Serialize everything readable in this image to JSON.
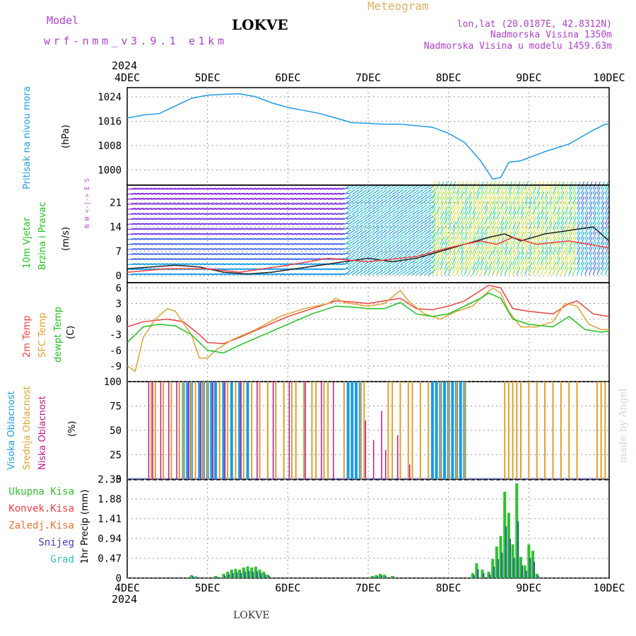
{
  "header": {
    "model_label": "Model",
    "model_name": "wrf-nmm_v3.9.1  e1km",
    "station": "LOKVE",
    "meteogram_label": "Meteogram",
    "lonlat": "lon,lat (20.0187E, 42.8312N)",
    "elevation": "Nadmorska Visina 1350m",
    "model_elevation": "Nadmorska Visina u modelu 1459.63m",
    "year_top": "2024",
    "year_bottom": "2024",
    "footer_station": "LOKVE",
    "watermark": "made by Angel"
  },
  "colors": {
    "pressure": "#1e9be6",
    "temp2m": "#f04040",
    "sfctemp": "#e0a030",
    "dewpt": "#20c020",
    "high_cloud": "#1e9be6",
    "mid_cloud": "#e0a030",
    "low_cloud": "#c01890",
    "precip_total": "#30c030",
    "precip_conv": "#f04040",
    "precip_snow": "#4040c0",
    "precip_grad": "#30c0c0",
    "purple_text": "#b040d0",
    "orange_text": "#e0b060",
    "wind_compass": "#c040d0"
  },
  "chart_data": {
    "x_ticks": [
      "4DEC",
      "5DEC",
      "6DEC",
      "7DEC",
      "8DEC",
      "9DEC",
      "10DEC"
    ],
    "x_range_days": [
      0,
      6
    ],
    "pressure": {
      "ylabel_left": "Pritisak na nivou mora",
      "unit": "(hPa)",
      "yticks": [
        "1024",
        "1016",
        "1008",
        "1000"
      ],
      "ylim": [
        995,
        1027
      ],
      "points": [
        [
          0,
          1017
        ],
        [
          0.2,
          1018
        ],
        [
          0.4,
          1018.5
        ],
        [
          0.6,
          1021
        ],
        [
          0.8,
          1023.5
        ],
        [
          1.0,
          1024.5
        ],
        [
          1.2,
          1024.8
        ],
        [
          1.4,
          1025
        ],
        [
          1.6,
          1024
        ],
        [
          1.8,
          1022
        ],
        [
          2.0,
          1020.5
        ],
        [
          2.2,
          1019.5
        ],
        [
          2.4,
          1018.5
        ],
        [
          2.6,
          1017
        ],
        [
          2.8,
          1015.5
        ],
        [
          3.0,
          1015.3
        ],
        [
          3.2,
          1015
        ],
        [
          3.4,
          1015
        ],
        [
          3.6,
          1014.5
        ],
        [
          3.8,
          1014
        ],
        [
          4.0,
          1012
        ],
        [
          4.2,
          1009
        ],
        [
          4.4,
          1003
        ],
        [
          4.55,
          997
        ],
        [
          4.65,
          997.5
        ],
        [
          4.75,
          1002.5
        ],
        [
          4.9,
          1003
        ],
        [
          5.2,
          1006
        ],
        [
          5.5,
          1008.5
        ],
        [
          5.8,
          1013
        ],
        [
          5.95,
          1015
        ],
        [
          6.0,
          1015
        ]
      ]
    },
    "wind": {
      "ylabel_left": "10m Vjetar",
      "ylabel_left2": "Brzina i Pravac",
      "unit": "(m/s)",
      "compass": "N  W <-|-> E  S",
      "yticks": [
        "21",
        "14",
        "7",
        "0"
      ],
      "ylim": [
        -2,
        26
      ],
      "speed_points": [
        [
          0,
          2
        ],
        [
          0.3,
          2.5
        ],
        [
          0.6,
          3
        ],
        [
          0.9,
          2.5
        ],
        [
          1.2,
          1
        ],
        [
          1.5,
          0.5
        ],
        [
          1.8,
          1
        ],
        [
          2.1,
          2
        ],
        [
          2.4,
          3
        ],
        [
          2.7,
          4
        ],
        [
          3.0,
          5
        ],
        [
          3.3,
          4
        ],
        [
          3.6,
          5
        ],
        [
          3.9,
          7
        ],
        [
          4.2,
          9
        ],
        [
          4.5,
          11
        ],
        [
          4.7,
          12
        ],
        [
          4.9,
          10
        ],
        [
          5.2,
          12
        ],
        [
          5.5,
          13
        ],
        [
          5.8,
          14
        ],
        [
          6.0,
          10
        ]
      ],
      "gust_points": [
        [
          0,
          1
        ],
        [
          0.5,
          2
        ],
        [
          1.0,
          2
        ],
        [
          1.4,
          1
        ],
        [
          2.0,
          3
        ],
        [
          2.5,
          5
        ],
        [
          3.0,
          4
        ],
        [
          3.6,
          5.5
        ],
        [
          4.0,
          8
        ],
        [
          4.4,
          10
        ],
        [
          4.6,
          9
        ],
        [
          4.8,
          11
        ],
        [
          5.1,
          9
        ],
        [
          5.5,
          10
        ],
        [
          6.0,
          8
        ]
      ]
    },
    "temperature": {
      "ylabel_left": "2m Temp",
      "ylabel_mid": "SFC Temp",
      "ylabel_right": "dewpt Temp",
      "unit": "(C)",
      "yticks": [
        "6",
        "3",
        "0",
        "-3",
        "-6",
        "-9"
      ],
      "ylim": [
        -12,
        7
      ],
      "series": [
        {
          "name": "2m Temp",
          "values": [
            [
              0,
              -1.5
            ],
            [
              0.2,
              -0.5
            ],
            [
              0.5,
              0
            ],
            [
              0.7,
              -0.5
            ],
            [
              0.9,
              -3
            ],
            [
              1.0,
              -4.5
            ],
            [
              1.2,
              -4.7
            ],
            [
              1.4,
              -3.5
            ],
            [
              1.7,
              -1.5
            ],
            [
              2.0,
              0.5
            ],
            [
              2.3,
              2
            ],
            [
              2.6,
              3.5
            ],
            [
              2.8,
              3.3
            ],
            [
              3.0,
              3
            ],
            [
              3.2,
              3.5
            ],
            [
              3.4,
              4
            ],
            [
              3.6,
              2
            ],
            [
              3.8,
              1.8
            ],
            [
              4.0,
              2.5
            ],
            [
              4.2,
              3.5
            ],
            [
              4.4,
              5.5
            ],
            [
              4.5,
              6.5
            ],
            [
              4.65,
              6
            ],
            [
              4.8,
              2
            ],
            [
              5.0,
              1.5
            ],
            [
              5.3,
              1
            ],
            [
              5.5,
              3
            ],
            [
              5.6,
              3.5
            ],
            [
              5.8,
              1
            ],
            [
              6.0,
              0.5
            ]
          ]
        },
        {
          "name": "SFC Temp",
          "values": [
            [
              0,
              -9
            ],
            [
              0.1,
              -10
            ],
            [
              0.2,
              -3.5
            ],
            [
              0.35,
              0
            ],
            [
              0.5,
              2
            ],
            [
              0.6,
              1.5
            ],
            [
              0.8,
              -3
            ],
            [
              0.9,
              -7.5
            ],
            [
              1.0,
              -7.5
            ],
            [
              1.1,
              -6
            ],
            [
              1.3,
              -4
            ],
            [
              1.6,
              -2
            ],
            [
              1.9,
              0.5
            ],
            [
              2.2,
              2
            ],
            [
              2.5,
              3
            ],
            [
              2.6,
              4
            ],
            [
              2.7,
              3.2
            ],
            [
              3.0,
              2.5
            ],
            [
              3.2,
              3
            ],
            [
              3.4,
              5.5
            ],
            [
              3.5,
              3.5
            ],
            [
              3.7,
              1
            ],
            [
              3.9,
              0
            ],
            [
              4.1,
              1.5
            ],
            [
              4.3,
              2.5
            ],
            [
              4.4,
              4
            ],
            [
              4.55,
              6
            ],
            [
              4.65,
              5
            ],
            [
              4.75,
              1.5
            ],
            [
              4.9,
              -1.5
            ],
            [
              5.1,
              -1.5
            ],
            [
              5.3,
              -0.5
            ],
            [
              5.45,
              3
            ],
            [
              5.6,
              2.5
            ],
            [
              5.75,
              -1
            ],
            [
              5.9,
              -2
            ],
            [
              6.0,
              -2
            ]
          ]
        },
        {
          "name": "dewpt Temp",
          "values": [
            [
              0,
              -4.5
            ],
            [
              0.2,
              -1.5
            ],
            [
              0.4,
              -1
            ],
            [
              0.6,
              -1.3
            ],
            [
              0.8,
              -3
            ],
            [
              1.0,
              -6
            ],
            [
              1.2,
              -6.5
            ],
            [
              1.4,
              -5
            ],
            [
              1.7,
              -3
            ],
            [
              2.0,
              -1
            ],
            [
              2.3,
              1
            ],
            [
              2.6,
              2.5
            ],
            [
              2.8,
              2.3
            ],
            [
              3.0,
              2
            ],
            [
              3.2,
              2
            ],
            [
              3.4,
              3.2
            ],
            [
              3.6,
              1
            ],
            [
              3.8,
              0.5
            ],
            [
              4.0,
              1
            ],
            [
              4.2,
              2.5
            ],
            [
              4.4,
              4
            ],
            [
              4.5,
              5
            ],
            [
              4.65,
              4
            ],
            [
              4.8,
              0
            ],
            [
              5.0,
              -1
            ],
            [
              5.3,
              -1.5
            ],
            [
              5.5,
              0.5
            ],
            [
              5.7,
              -2
            ],
            [
              5.9,
              -2.5
            ],
            [
              6.0,
              -2.3
            ]
          ]
        }
      ]
    },
    "cloud": {
      "ylabel_1": "Visoka Oblacnost",
      "ylabel_2": "Srednja Oblacnost",
      "ylabel_3": "Niska Oblacnost",
      "unit": "(%)",
      "yticks": [
        "100",
        "75",
        "50",
        "25",
        "0"
      ],
      "ylim": [
        0,
        100
      ],
      "high_cloud_times": [
        0.7,
        0.75,
        0.8,
        0.9,
        0.95,
        1.0,
        1.05,
        1.1,
        1.2,
        1.3,
        1.4,
        1.5,
        2.75,
        2.8,
        2.85,
        2.9,
        3.8,
        3.85,
        3.9,
        3.95,
        4.0,
        4.05,
        4.1,
        4.15,
        4.2
      ],
      "mid_cloud_times": [
        0.3,
        0.35,
        0.45,
        0.55,
        0.65,
        0.7,
        0.8,
        0.85,
        0.95,
        1.0,
        1.15,
        1.25,
        1.35,
        1.45,
        1.55,
        1.65,
        1.75,
        1.85,
        1.95,
        2.05,
        2.1,
        2.2,
        2.3,
        2.35,
        2.45,
        2.5,
        2.7,
        2.9,
        2.95,
        3.25,
        3.3,
        3.4,
        3.5,
        3.55,
        3.65,
        3.75,
        3.9,
        4.0,
        4.1,
        4.2,
        4.7,
        4.75,
        4.8,
        4.85,
        4.9,
        5.0,
        5.1,
        5.2,
        5.3,
        5.4,
        5.5,
        5.6,
        5.85,
        5.9,
        5.95
      ],
      "low_cloud_times": [
        0.25,
        0.3,
        0.4,
        0.5,
        0.6,
        0.75,
        0.9,
        1.05,
        1.2,
        1.4,
        1.6,
        1.8,
        2.0,
        2.2,
        2.4,
        2.55,
        2.95,
        3.05,
        3.15,
        3.2,
        3.35,
        3.5
      ],
      "low_cloud_values": [
        100,
        100,
        100,
        100,
        100,
        100,
        100,
        100,
        100,
        100,
        100,
        100,
        100,
        100,
        100,
        100,
        60,
        40,
        70,
        30,
        45,
        15
      ]
    },
    "precip": {
      "legend": [
        "Ukupna Kisa",
        "Konvek.Kisa",
        "Zaledj.Kisa",
        "Snijeg",
        "Grad"
      ],
      "ylabel": "1hr Precip (mm)",
      "yticks": [
        "2.35",
        "1.88",
        "1.41",
        "0.94",
        "0.47",
        "0"
      ],
      "ylim": [
        0,
        2.35
      ],
      "bars": [
        [
          0.8,
          0.07
        ],
        [
          0.85,
          0.04
        ],
        [
          1.1,
          0.05
        ],
        [
          1.2,
          0.1
        ],
        [
          1.25,
          0.15
        ],
        [
          1.3,
          0.2
        ],
        [
          1.35,
          0.22
        ],
        [
          1.4,
          0.2
        ],
        [
          1.45,
          0.25
        ],
        [
          1.5,
          0.28
        ],
        [
          1.55,
          0.25
        ],
        [
          1.6,
          0.27
        ],
        [
          1.65,
          0.2
        ],
        [
          1.7,
          0.15
        ],
        [
          1.75,
          0.08
        ],
        [
          3.05,
          0.05
        ],
        [
          3.1,
          0.07
        ],
        [
          3.15,
          0.1
        ],
        [
          3.2,
          0.08
        ],
        [
          3.3,
          0.05
        ],
        [
          4.3,
          0.12
        ],
        [
          4.35,
          0.35
        ],
        [
          4.42,
          0.2
        ],
        [
          4.5,
          0.15
        ],
        [
          4.55,
          0.45
        ],
        [
          4.6,
          0.75
        ],
        [
          4.65,
          1.0
        ],
        [
          4.7,
          2.05
        ],
        [
          4.75,
          1.55
        ],
        [
          4.8,
          0.8
        ],
        [
          4.85,
          2.25
        ],
        [
          4.9,
          0.5
        ],
        [
          4.95,
          0.3
        ],
        [
          5.0,
          0.8
        ],
        [
          5.05,
          0.65
        ],
        [
          5.1,
          0.1
        ]
      ]
    }
  }
}
